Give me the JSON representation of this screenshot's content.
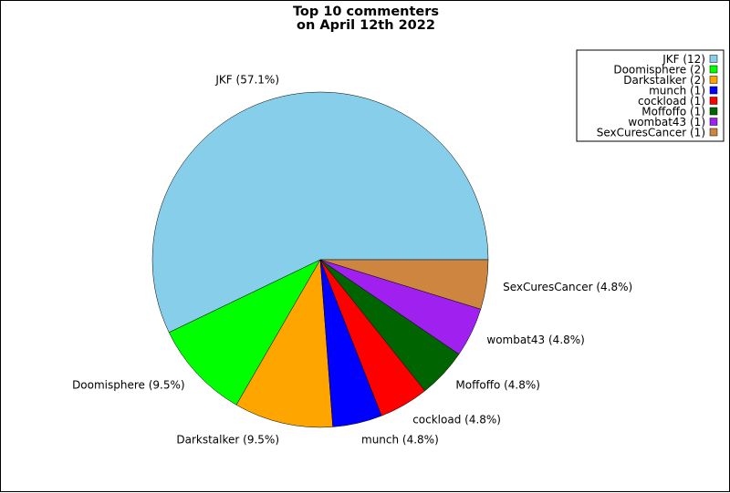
{
  "chart_data": {
    "type": "pie",
    "title": [
      "Top 10 commenters",
      "on April 12th 2022"
    ],
    "legend_position": "top-right",
    "slices": [
      {
        "name": "JKF",
        "count": 12,
        "percent_label": "57.1%",
        "legend_label": "JKF (12)",
        "slice_label": "JKF (57.1%)",
        "color": "#87CEEB"
      },
      {
        "name": "Doomisphere",
        "count": 2,
        "percent_label": "9.5%",
        "legend_label": "Doomisphere (2)",
        "slice_label": "Doomisphere (9.5%)",
        "color": "#00FF00"
      },
      {
        "name": "Darkstalker",
        "count": 2,
        "percent_label": "9.5%",
        "legend_label": "Darkstalker (2)",
        "slice_label": "Darkstalker (9.5%)",
        "color": "#FFA500"
      },
      {
        "name": "munch",
        "count": 1,
        "percent_label": "4.8%",
        "legend_label": "munch (1)",
        "slice_label": "munch (4.8%)",
        "color": "#0000FF"
      },
      {
        "name": "cockload",
        "count": 1,
        "percent_label": "4.8%",
        "legend_label": "cockload (1)",
        "slice_label": "cockload (4.8%)",
        "color": "#FF0000"
      },
      {
        "name": "Moffoffo",
        "count": 1,
        "percent_label": "4.8%",
        "legend_label": "Moffoffo (1)",
        "slice_label": "Moffoffo (4.8%)",
        "color": "#006400"
      },
      {
        "name": "wombat43",
        "count": 1,
        "percent_label": "4.8%",
        "legend_label": "wombat43 (1)",
        "slice_label": "wombat43 (4.8%)",
        "color": "#A020F0"
      },
      {
        "name": "SexCuresCancer",
        "count": 1,
        "percent_label": "4.8%",
        "legend_label": "SexCuresCancer (1)",
        "slice_label": "SexCuresCancer (4.8%)",
        "color": "#CD853F"
      }
    ]
  }
}
